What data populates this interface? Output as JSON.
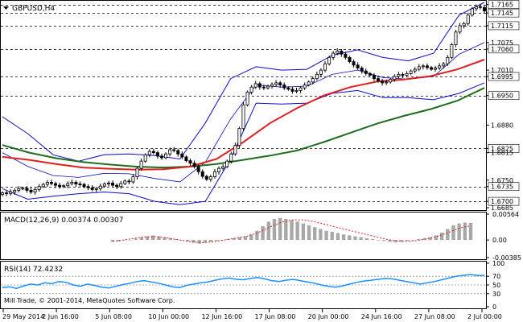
{
  "window": {
    "symbol_label": "GBPUSD,H4",
    "copyright": "Mill Trade, © 2001-2014, MetaQuotes Software Corp."
  },
  "colors": {
    "background": "#ffffff",
    "up_candle": "#000000",
    "down_candle": "#000000",
    "bollinger": "#0a0ac8",
    "ma_red": "#e02020",
    "ma_green": "#1e6e1e",
    "level_line": "#000000",
    "macd_hist": "#a8a8a8",
    "macd_signal": "#e02020",
    "rsi_line": "#1e90ff",
    "rsi_levels": "#606060"
  },
  "chart_data": [
    {
      "type": "line",
      "panel": "price",
      "title": "GBPUSD,H4",
      "ylim": [
        1.6685,
        1.717
      ],
      "y_ticks": [
        "1.7165",
        "1.7145",
        "1.7115",
        "1.7075",
        "1.7060",
        "1.7010",
        "1.6995",
        "1.6950",
        "1.6880",
        "1.6825",
        "1.6815",
        "1.6750",
        "1.6735",
        "1.6700",
        "1.6685"
      ],
      "horizontal_levels": [
        "1.7165",
        "1.7145",
        "1.7115",
        "1.7060",
        "1.6995",
        "1.6950",
        "1.6825",
        "1.6735",
        "1.6700"
      ],
      "x_labels": [
        "29 May 2014",
        "2 Jun 16:00",
        "5 Jun 08:00",
        "10 Jun 00:00",
        "12 Jun 16:00",
        "17 Jun 08:00",
        "20 Jun 00:00",
        "24 Jun 16:00",
        "27 Jun 08:00",
        "2 Jul 00:00"
      ],
      "series": [
        {
          "key": "close",
          "values": [
            1.672,
            1.6718,
            1.6722,
            1.6726,
            1.673,
            1.6731,
            1.6726,
            1.6722,
            1.6728,
            1.6735,
            1.674,
            1.6745,
            1.6742,
            1.6738,
            1.6735,
            1.6737,
            1.6742,
            1.6745,
            1.6741,
            1.674,
            1.6735,
            1.6732,
            1.6728,
            1.673,
            1.6736,
            1.6741,
            1.6743,
            1.6738,
            1.6735,
            1.6742,
            1.6748,
            1.6746,
            1.6758,
            1.6778,
            1.6795,
            1.681,
            1.6818,
            1.6815,
            1.6807,
            1.6803,
            1.6812,
            1.6822,
            1.682,
            1.6812,
            1.6805,
            1.6796,
            1.679,
            1.6782,
            1.677,
            1.6759,
            1.6752,
            1.6758,
            1.677,
            1.6778,
            1.6782,
            1.6795,
            1.6812,
            1.6832,
            1.6872,
            1.6928,
            1.6958,
            1.697,
            1.6978,
            1.697,
            1.6968,
            1.6972,
            1.6976,
            1.698,
            1.6975,
            1.6968,
            1.6965,
            1.696,
            1.6962,
            1.6968,
            1.6975,
            1.6982,
            1.699,
            1.7,
            1.701,
            1.7025,
            1.704,
            1.705,
            1.7055,
            1.7048,
            1.704,
            1.703,
            1.7022,
            1.7015,
            1.7008,
            1.7002,
            1.6998,
            1.699,
            1.6985,
            1.698,
            1.6982,
            1.6988,
            1.6995,
            1.7,
            1.6998,
            1.7002,
            1.7008,
            1.7012,
            1.7018,
            1.702,
            1.7016,
            1.7012,
            1.7015,
            1.702,
            1.7025,
            1.704,
            1.707,
            1.71,
            1.7115,
            1.712,
            1.714,
            1.7155,
            1.716,
            1.7158,
            1.715
          ]
        },
        {
          "key": "ma_red",
          "values": [
            1.6805,
            1.6798,
            1.6788,
            1.678,
            1.6777,
            1.6775,
            1.6776,
            1.6782,
            1.68,
            1.684,
            1.6885,
            1.692,
            1.695,
            1.697,
            1.6983,
            1.6988,
            1.6996,
            1.7012,
            1.7035
          ]
        },
        {
          "key": "ma_green",
          "values": [
            1.6833,
            1.6815,
            1.6802,
            1.6793,
            1.6787,
            1.6782,
            1.678,
            1.6782,
            1.6788,
            1.6798,
            1.6808,
            1.682,
            1.684,
            1.6862,
            1.6884,
            1.6902,
            1.6918,
            1.6938,
            1.6968
          ]
        },
        {
          "key": "bb_upper",
          "values": [
            1.69,
            1.686,
            1.681,
            1.6795,
            1.681,
            1.6812,
            1.6808,
            1.68,
            1.6885,
            1.699,
            1.7018,
            1.701,
            1.7012,
            1.7045,
            1.7058,
            1.704,
            1.7032,
            1.705,
            1.714,
            1.717
          ]
        },
        {
          "key": "bb_lower",
          "values": [
            1.673,
            1.6705,
            1.6712,
            1.6718,
            1.6722,
            1.6718,
            1.67,
            1.6692,
            1.67,
            1.68,
            1.6932,
            1.693,
            1.6932,
            1.6955,
            1.6962,
            1.6945,
            1.6945,
            1.694,
            1.6955,
            1.698
          ]
        }
      ]
    },
    {
      "type": "bar",
      "panel": "macd",
      "title": "MACD(12,26,9) 0.00374 0.00307",
      "ylim": [
        -0.00385,
        0.00564
      ],
      "y_ticks": [
        "0.00564",
        "0.00",
        "-0.00385"
      ],
      "series": [
        {
          "key": "histogram",
          "values": [
            -0.0004,
            -0.0003,
            -0.0001,
            0.0,
            0.0003,
            0.0006,
            0.0008,
            0.001,
            0.0008,
            0.0006,
            0.0004,
            0.0002,
            0.0,
            -0.0003,
            -0.0006,
            -0.0008,
            -0.0006,
            -0.0004,
            -0.0002,
            0.0,
            0.0002,
            0.0004,
            0.0006,
            0.0008,
            0.0012,
            0.002,
            0.003,
            0.004,
            0.0046,
            0.0048,
            0.0046,
            0.0043,
            0.004,
            0.0036,
            0.0032,
            0.0028,
            0.0024,
            0.002,
            0.0018,
            0.0015,
            0.0012,
            0.001,
            0.0008,
            0.0006,
            0.0004,
            0.0002,
            0.0,
            -0.0002,
            -0.0004,
            -0.0005,
            -0.0004,
            -0.0002,
            0.0,
            0.0002,
            0.0004,
            0.0006,
            0.001,
            0.0016,
            0.0024,
            0.0032,
            0.0036,
            0.0038,
            0.0037
          ]
        },
        {
          "key": "signal",
          "values": [
            -0.0003,
            0.0,
            0.0004,
            0.0007,
            0.0007,
            0.0004,
            0.0,
            -0.0004,
            -0.0006,
            -0.0004,
            0.0,
            0.0004,
            0.0008,
            0.0016,
            0.0028,
            0.0038,
            0.0044,
            0.0044,
            0.004,
            0.0034,
            0.0028,
            0.0022,
            0.0016,
            0.001,
            0.0004,
            -0.0001,
            -0.0003,
            -0.0002,
            0.0002,
            0.0008,
            0.0016,
            0.0026,
            0.0031
          ]
        }
      ]
    },
    {
      "type": "line",
      "panel": "rsi",
      "title": "RSI(14) 72.4232",
      "ylim": [
        0,
        100
      ],
      "y_ticks": [
        "100",
        "70",
        "50",
        "30",
        "0"
      ],
      "levels": [
        70,
        50,
        30
      ],
      "series": [
        {
          "key": "rsi",
          "values": [
            44,
            46,
            42,
            48,
            52,
            50,
            55,
            53,
            58,
            56,
            50,
            47,
            52,
            49,
            45,
            43,
            47,
            51,
            54,
            58,
            60,
            57,
            54,
            50,
            46,
            44,
            49,
            52,
            55,
            57,
            61,
            64,
            66,
            63,
            62,
            65,
            67,
            64,
            60,
            58,
            61,
            63,
            60,
            57,
            54,
            50,
            47,
            45,
            48,
            52,
            56,
            59,
            61,
            63,
            65,
            64,
            61,
            58,
            55,
            52,
            55,
            58,
            62,
            66,
            70,
            72,
            74,
            72,
            72
          ]
        }
      ]
    }
  ]
}
